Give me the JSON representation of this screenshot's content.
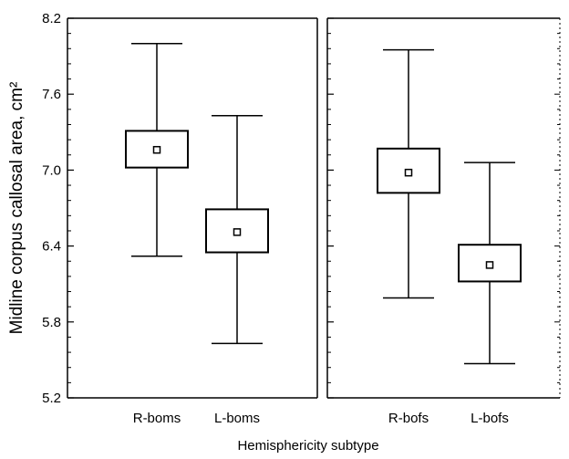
{
  "chart_data": {
    "type": "box",
    "xlabel": "Hemisphericity subtype",
    "ylabel": "Midline corpus callosal area, cm²",
    "ylim": [
      5.2,
      8.2
    ],
    "yticks": [
      5.2,
      5.8,
      6.4,
      7.0,
      7.6,
      8.2
    ],
    "ytick_labels": [
      "5.2",
      "5.8",
      "6.4",
      "7.0",
      "7.6",
      "8.2"
    ],
    "panels": [
      {
        "categories": [
          "R-boms",
          "L-boms"
        ],
        "boxes": [
          {
            "whisker_low": 6.32,
            "q1": 7.02,
            "median": 7.16,
            "q3": 7.31,
            "whisker_high": 8.0
          },
          {
            "whisker_low": 5.63,
            "q1": 6.35,
            "median": 6.51,
            "q3": 6.69,
            "whisker_high": 7.43
          }
        ]
      },
      {
        "categories": [
          "R-bofs",
          "L-bofs"
        ],
        "boxes": [
          {
            "whisker_low": 5.99,
            "q1": 6.82,
            "median": 6.98,
            "q3": 7.17,
            "whisker_high": 7.95
          },
          {
            "whisker_low": 5.47,
            "q1": 6.12,
            "median": 6.25,
            "q3": 6.41,
            "whisker_high": 7.06
          }
        ]
      }
    ]
  }
}
